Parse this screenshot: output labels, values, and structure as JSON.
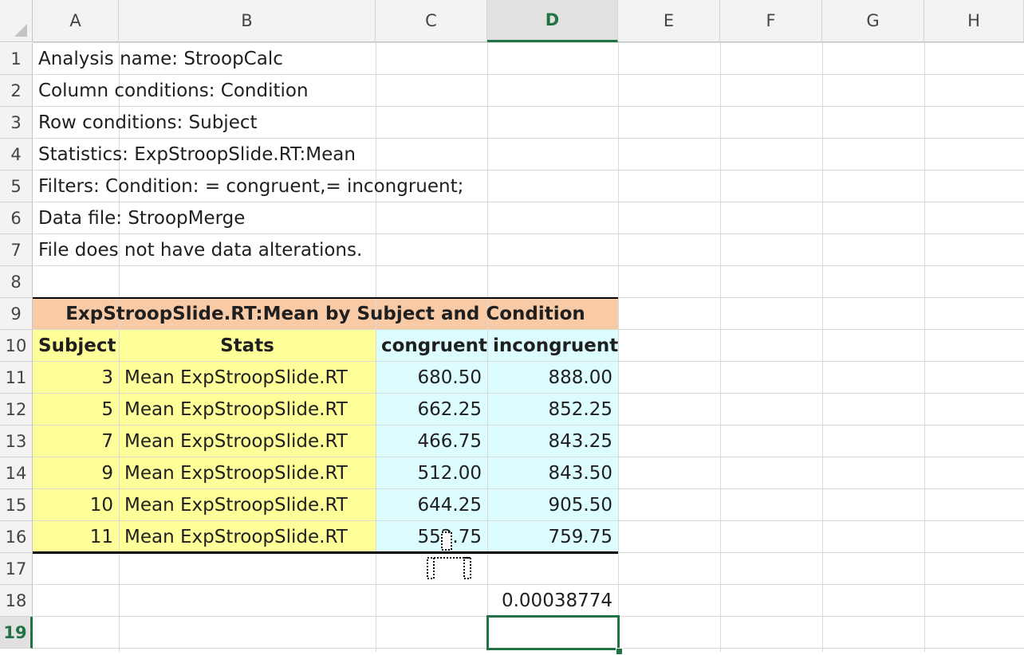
{
  "columns": [
    "A",
    "B",
    "C",
    "D",
    "E",
    "F",
    "G",
    "H"
  ],
  "rows": [
    "1",
    "2",
    "3",
    "4",
    "5",
    "6",
    "7",
    "8",
    "9",
    "10",
    "11",
    "12",
    "13",
    "14",
    "15",
    "16",
    "17",
    "18",
    "19"
  ],
  "active_column": "D",
  "active_row": "19",
  "info_lines": [
    "Analysis name: StroopCalc",
    "Column conditions: Condition",
    "Row conditions: Subject",
    "Statistics: ExpStroopSlide.RT:Mean",
    "Filters: Condition: = congruent,= incongruent;",
    "Data file: StroopMerge",
    "File does not have data alterations."
  ],
  "table": {
    "title": "ExpStroopSlide.RT:Mean by Subject and Condition",
    "headers": {
      "subject": "Subject",
      "stats": "Stats",
      "congruent": "congruent",
      "incongruent": "incongruent"
    },
    "rows": [
      {
        "subject": "3",
        "stat": "Mean ExpStroopSlide.RT",
        "congruent": "680.50",
        "incongruent": "888.00"
      },
      {
        "subject": "5",
        "stat": "Mean ExpStroopSlide.RT",
        "congruent": "662.25",
        "incongruent": "852.25"
      },
      {
        "subject": "7",
        "stat": "Mean ExpStroopSlide.RT",
        "congruent": "466.75",
        "incongruent": "843.25"
      },
      {
        "subject": "9",
        "stat": "Mean ExpStroopSlide.RT",
        "congruent": "512.00",
        "incongruent": "843.50"
      },
      {
        "subject": "10",
        "stat": "Mean ExpStroopSlide.RT",
        "congruent": "644.25",
        "incongruent": "905.50"
      },
      {
        "subject": "11",
        "stat": "Mean ExpStroopSlide.RT",
        "congruent": "552.75",
        "incongruent": "759.75"
      }
    ]
  },
  "result_value": "0.00038774",
  "colors": {
    "title_fill": "#f8cba6",
    "yellow_fill": "#ffff99",
    "cyan_fill": "#dcfcfe",
    "selection": "#217346"
  }
}
